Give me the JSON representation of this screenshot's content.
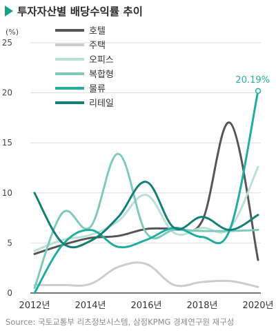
{
  "title": "투자자산별 배당수익률 추이",
  "source": "Source: 국토교통부 리츠정보시스템, 삼정KPMG 경제연구원 재구성",
  "colors": {
    "title_marker": "#1a9e8f",
    "grid": "#dddddd",
    "axis": "#222222"
  },
  "chart_data": {
    "type": "line",
    "unit": "(%)",
    "title": "투자자산별 배당수익률 추이",
    "x": [
      2012,
      2013,
      2014,
      2015,
      2016,
      2017,
      2018,
      2019,
      2020
    ],
    "x_tick_values": [
      2012,
      2014,
      2016,
      2018,
      2020
    ],
    "x_tick_labels": [
      "2012년",
      "2014년",
      "2016년",
      "2018년",
      "2020년"
    ],
    "ylim": [
      0,
      25
    ],
    "y_ticks": [
      0,
      5,
      10,
      15,
      20,
      25
    ],
    "y_tick_labels": [
      "0",
      "5",
      "10",
      "15",
      "20",
      "25"
    ],
    "grid": "horizontal",
    "legend_position": "top-center",
    "series": [
      {
        "name": "호텔",
        "color": "#555555",
        "values": [
          3.9,
          4.8,
          5.5,
          5.7,
          6.4,
          6.5,
          7.2,
          17.0,
          3.3
        ]
      },
      {
        "name": "주택",
        "color": "#cccccc",
        "values": [
          0.8,
          0.8,
          0.9,
          2.6,
          2.9,
          0.8,
          1.1,
          1.2,
          0.6
        ]
      },
      {
        "name": "오피스",
        "color": "#b8e0d6",
        "values": [
          4.2,
          5.3,
          5.8,
          7.2,
          9.8,
          6.0,
          6.5,
          6.5,
          12.6
        ]
      },
      {
        "name": "복합형",
        "color": "#7fc9bc",
        "values": [
          0.5,
          8.0,
          6.6,
          13.9,
          6.0,
          6.3,
          6.2,
          6.2,
          6.3
        ]
      },
      {
        "name": "물류",
        "color": "#1fada0",
        "values": [
          0.0,
          4.8,
          6.3,
          4.6,
          5.3,
          6.5,
          5.6,
          6.4,
          20.19
        ]
      },
      {
        "name": "리테일",
        "color": "#117f73",
        "values": [
          10.0,
          5.0,
          5.2,
          7.6,
          11.1,
          6.5,
          7.6,
          6.3,
          7.8
        ]
      }
    ],
    "annotation": {
      "series": "물류",
      "x": 2020,
      "y": 20.19,
      "text": "20.19%"
    }
  }
}
